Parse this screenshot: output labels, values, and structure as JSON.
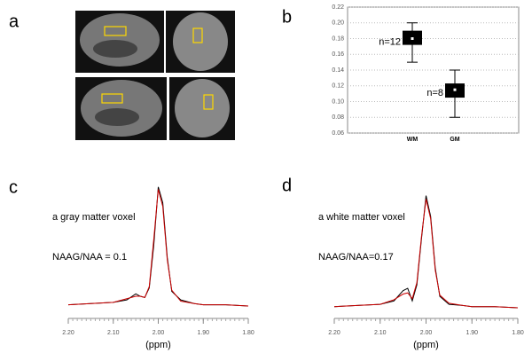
{
  "panel_labels": [
    "a",
    "b",
    "c",
    "d"
  ],
  "chart_data": [
    {
      "type": "box",
      "categories": [
        "WM",
        "GM"
      ],
      "min": [
        0.15,
        0.08
      ],
      "q1": [
        0.172,
        0.105
      ],
      "median": [
        0.18,
        0.115
      ],
      "q3": [
        0.19,
        0.123
      ],
      "max": [
        0.2,
        0.14
      ],
      "annotations": [
        "n=12",
        "n=8"
      ],
      "ylim": [
        0.06,
        0.22
      ],
      "yticks": [
        {
          "value": 0.06,
          "label": "0.06"
        },
        {
          "value": 0.08,
          "label": "0.08"
        },
        {
          "value": 0.1,
          "label": "0.10"
        },
        {
          "value": 0.12,
          "label": "0.12"
        },
        {
          "value": 0.14,
          "label": "0.14"
        },
        {
          "value": 0.16,
          "label": "0.16"
        },
        {
          "value": 0.18,
          "label": "0.18"
        },
        {
          "value": 0.2,
          "label": "0.20"
        },
        {
          "value": 0.22,
          "label": "0.22"
        }
      ],
      "grid": true,
      "color": "#000000"
    },
    {
      "type": "line",
      "annotations": [
        "a gray matter voxel",
        "NAAG/NAA = 0.1"
      ],
      "xlabel": "(ppm)",
      "xlim": [
        2.2,
        1.8
      ],
      "ylim": [
        0,
        1
      ],
      "xticks": [
        {
          "value": 2.2,
          "label": "2.20"
        },
        {
          "value": 2.1,
          "label": "2.10"
        },
        {
          "value": 2.0,
          "label": "2.00"
        },
        {
          "value": 1.9,
          "label": "1.90"
        },
        {
          "value": 1.8,
          "label": "1.80"
        }
      ],
      "x": [
        2.2,
        2.15,
        2.1,
        2.07,
        2.05,
        2.04,
        2.03,
        2.02,
        2.01,
        2.0,
        1.99,
        1.98,
        1.97,
        1.95,
        1.92,
        1.9,
        1.85,
        1.8
      ],
      "series": [
        {
          "color": "#000000",
          "values": [
            0.01,
            0.02,
            0.03,
            0.05,
            0.1,
            0.08,
            0.07,
            0.15,
            0.5,
            0.98,
            0.85,
            0.4,
            0.12,
            0.05,
            0.02,
            0.01,
            0.01,
            0.0
          ]
        },
        {
          "color": "#cc0000",
          "values": [
            0.01,
            0.02,
            0.03,
            0.06,
            0.08,
            0.08,
            0.07,
            0.16,
            0.55,
            0.96,
            0.82,
            0.38,
            0.13,
            0.04,
            0.02,
            0.01,
            0.01,
            0.0
          ]
        }
      ]
    },
    {
      "type": "line",
      "annotations": [
        "a white matter voxel",
        "NAAG/NAA=0.17"
      ],
      "xlabel": "(ppm)",
      "xlim": [
        2.2,
        1.8
      ],
      "ylim": [
        0,
        1
      ],
      "xticks": [
        {
          "value": 2.2,
          "label": "2.20"
        },
        {
          "value": 2.1,
          "label": "2.10"
        },
        {
          "value": 2.0,
          "label": "2.00"
        },
        {
          "value": 1.9,
          "label": "1.90"
        },
        {
          "value": 1.8,
          "label": "1.80"
        }
      ],
      "x": [
        2.2,
        2.15,
        2.1,
        2.07,
        2.05,
        2.04,
        2.03,
        2.02,
        2.01,
        2.0,
        1.99,
        1.98,
        1.97,
        1.95,
        1.92,
        1.9,
        1.85,
        1.8
      ],
      "series": [
        {
          "color": "#000000",
          "values": [
            0.01,
            0.02,
            0.03,
            0.06,
            0.15,
            0.17,
            0.06,
            0.2,
            0.6,
            0.98,
            0.8,
            0.35,
            0.1,
            0.03,
            0.02,
            0.01,
            0.01,
            0.0
          ]
        },
        {
          "color": "#cc0000",
          "values": [
            0.01,
            0.02,
            0.03,
            0.07,
            0.12,
            0.13,
            0.08,
            0.22,
            0.62,
            0.95,
            0.78,
            0.33,
            0.11,
            0.04,
            0.02,
            0.01,
            0.01,
            0.0
          ]
        }
      ]
    }
  ]
}
